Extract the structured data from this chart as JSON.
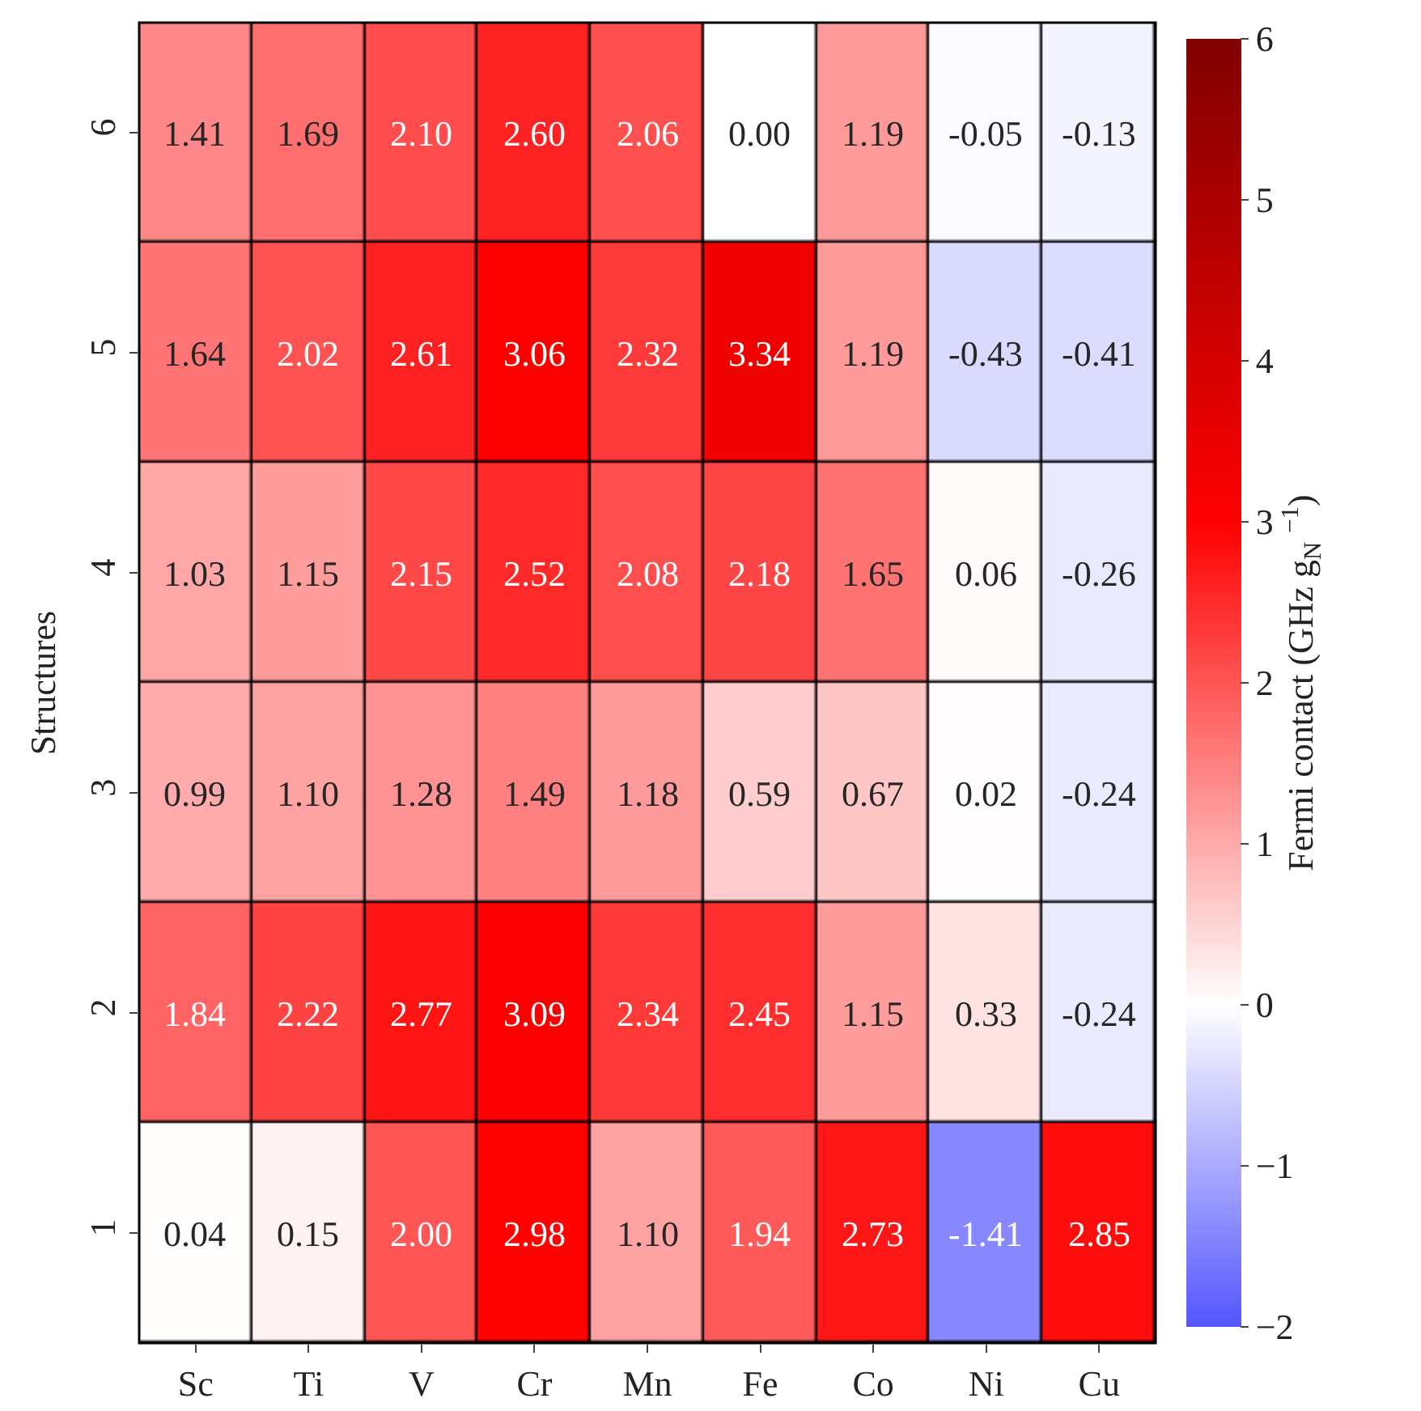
{
  "chart_data": {
    "type": "heatmap",
    "ylabel": "Structures",
    "clabel": "Fermi contact (GHz g$_{N}$ $^{−1}$)",
    "categories": [
      "Sc",
      "Ti",
      "V",
      "Cr",
      "Mn",
      "Fe",
      "Co",
      "Ni",
      "Cu"
    ],
    "y_categories": [
      "6",
      "5",
      "4",
      "3",
      "2",
      "1"
    ],
    "cells": [
      [
        1.41,
        1.69,
        2.1,
        2.6,
        2.06,
        0.0,
        1.19,
        -0.05,
        -0.13
      ],
      [
        1.64,
        2.02,
        2.61,
        3.06,
        2.32,
        3.34,
        1.19,
        -0.43,
        -0.41
      ],
      [
        1.03,
        1.15,
        2.15,
        2.52,
        2.08,
        2.18,
        1.65,
        0.06,
        -0.26
      ],
      [
        0.99,
        1.1,
        1.28,
        1.49,
        1.18,
        0.59,
        0.67,
        0.02,
        -0.24
      ],
      [
        1.84,
        2.22,
        2.77,
        3.09,
        2.34,
        2.45,
        1.15,
        0.33,
        -0.24
      ],
      [
        0.04,
        0.15,
        2.0,
        2.98,
        1.1,
        1.94,
        2.73,
        -1.41,
        2.85
      ]
    ],
    "cell_labels": [
      [
        "1.41",
        "1.69",
        "2.10",
        "2.60",
        "2.06",
        "0.00",
        "1.19",
        "-0.05",
        "-0.13"
      ],
      [
        "1.64",
        "2.02",
        "2.61",
        "3.06",
        "2.32",
        "3.34",
        "1.19",
        "-0.43",
        "-0.41"
      ],
      [
        "1.03",
        "1.15",
        "2.15",
        "2.52",
        "2.08",
        "2.18",
        "1.65",
        "0.06",
        "-0.26"
      ],
      [
        "0.99",
        "1.10",
        "1.28",
        "1.49",
        "1.18",
        "0.59",
        "0.67",
        "0.02",
        "-0.24"
      ],
      [
        "1.84",
        "2.22",
        "2.77",
        "3.09",
        "2.34",
        "2.45",
        "1.15",
        "0.33",
        "-0.24"
      ],
      [
        "0.04",
        "0.15",
        "2.00",
        "2.98",
        "1.10",
        "1.94",
        "2.73",
        "-1.41",
        "2.85"
      ]
    ],
    "data_labels": true,
    "clim": [
      -2,
      6
    ],
    "cticks": [
      {
        "value": -2,
        "label": "−2"
      },
      {
        "value": -1,
        "label": "−1"
      },
      0,
      1,
      2,
      3,
      4,
      5,
      6
    ]
  }
}
